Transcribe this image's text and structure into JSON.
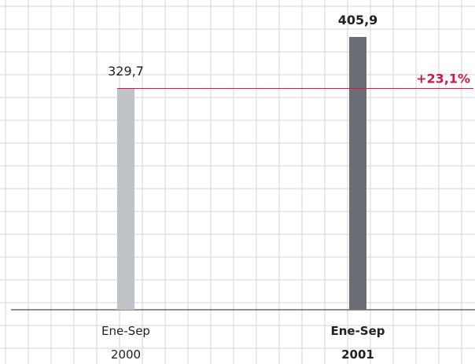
{
  "chart_data": {
    "type": "bar",
    "categories": [
      {
        "line1": "Ene-Sep",
        "line2": "2000",
        "bold": false
      },
      {
        "line1": "Ene-Sep",
        "line2": "2001",
        "bold": true
      }
    ],
    "values": [
      329.7,
      405.9
    ],
    "value_labels": [
      "329,7",
      "405,9"
    ],
    "value_label_bold": [
      false,
      true
    ],
    "colors": [
      "#bfc3c7",
      "#6a6d73"
    ],
    "ylim": [
      0,
      430
    ],
    "reference_line": {
      "value": 329.7,
      "color": "#d0174a",
      "label": "+23,1%"
    },
    "grid": true,
    "title": "",
    "xlabel": "",
    "ylabel": ""
  }
}
